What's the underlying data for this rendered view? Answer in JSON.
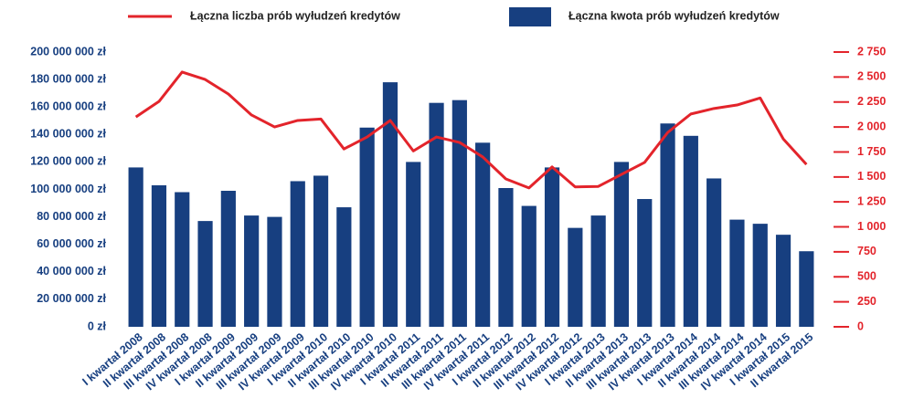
{
  "chart_data": {
    "type": "bar",
    "categories": [
      "I kwartał 2008",
      "II kwartał 2008",
      "III kwartał 2008",
      "IV kwartał 2008",
      "I kwartał 2009",
      "II kwartał 2009",
      "III kwartał 2009",
      "IV kwartał 2009",
      "I kwartał 2010",
      "II kwartał 2010",
      "III kwartał 2010",
      "IV kwartał 2010",
      "I kwartał 2011",
      "II kwartał 2011",
      "III kwartał 2011",
      "IV kwartał 2011",
      "I kwartał 2012",
      "II kwartał 2012",
      "III kwartał 2012",
      "IV kwartał 2012",
      "I kwartał 2013",
      "II kwartał 2013",
      "III kwartał 2013",
      "IV kwartał 2013",
      "I kwartał 2014",
      "II kwartał 2014",
      "III kwartał 2014",
      "IV kwartał 2014",
      "I kwartał 2015",
      "II kwartał 2015"
    ],
    "series": [
      {
        "name": "Łączna liczba prób wyłudzeń kredytów",
        "type": "line",
        "axis": "y2",
        "color": "#e3242b",
        "values": [
          2100,
          2255,
          2550,
          2475,
          2330,
          2120,
          2000,
          2065,
          2080,
          1780,
          1900,
          2065,
          1760,
          1900,
          1845,
          1700,
          1480,
          1390,
          1600,
          1400,
          1405,
          1525,
          1645,
          1945,
          2130,
          2185,
          2220,
          2290,
          1880,
          1625
        ]
      },
      {
        "name": "Łączna kwota prób wyłudzeń kredytów",
        "type": "bar",
        "axis": "y",
        "color": "#173f80",
        "values": [
          116000000,
          103000000,
          98000000,
          77000000,
          99000000,
          81000000,
          80000000,
          106000000,
          110000000,
          87000000,
          145000000,
          178000000,
          120000000,
          163000000,
          165000000,
          134000000,
          101000000,
          88000000,
          116000000,
          72000000,
          81000000,
          120000000,
          93000000,
          148000000,
          139000000,
          108000000,
          78000000,
          75000000,
          67000000,
          55000000
        ]
      }
    ],
    "ylim": [
      0,
      200000000
    ],
    "yticks": [
      {
        "value": 0,
        "label": "0 zł"
      },
      {
        "value": 20000000,
        "label": "20 000 000 zł"
      },
      {
        "value": 40000000,
        "label": "40 000 000 zł"
      },
      {
        "value": 60000000,
        "label": "60 000 000 zł"
      },
      {
        "value": 80000000,
        "label": "80 000 000 zł"
      },
      {
        "value": 100000000,
        "label": "100 000 000 zł"
      },
      {
        "value": 120000000,
        "label": "120 000 000 zł"
      },
      {
        "value": 140000000,
        "label": "140 000 000 zł"
      },
      {
        "value": 160000000,
        "label": "160 000 000 zł"
      },
      {
        "value": 180000000,
        "label": "180 000 000 zł"
      },
      {
        "value": 200000000,
        "label": "200 000 000 zł"
      }
    ],
    "y2lim": [
      0,
      2750
    ],
    "y2ticks": [
      0,
      250,
      500,
      750,
      {
        "value": 1000,
        "label": "1 000"
      },
      {
        "value": 1250,
        "label": "1 250"
      },
      {
        "value": 1500,
        "label": "1 500"
      },
      {
        "value": 1750,
        "label": "1 750"
      },
      {
        "value": 2000,
        "label": "2 000"
      },
      {
        "value": 2250,
        "label": "2 250"
      },
      {
        "value": 2500,
        "label": "2 500"
      },
      {
        "value": 2750,
        "label": "2 750"
      }
    ],
    "grid": false
  }
}
